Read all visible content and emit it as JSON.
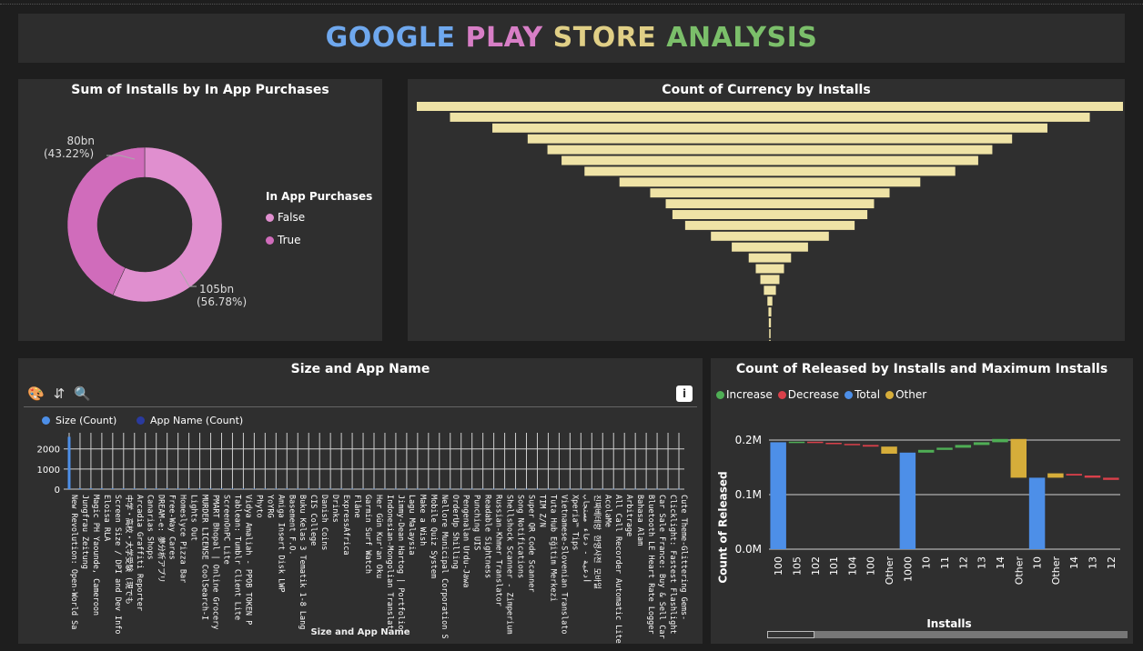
{
  "header": {
    "title_parts": [
      {
        "text": "GOOGLE",
        "color": "#6fa8ee"
      },
      {
        "text": "PLAY",
        "color": "#d77ec6"
      },
      {
        "text": "STORE",
        "color": "#e0cf86"
      },
      {
        "text": "ANALYSIS",
        "color": "#7bbf6a"
      }
    ]
  },
  "donut": {
    "title": "Sum of Installs by In App Purchases",
    "legend_title": "In App Purchases",
    "label_true_value": "80bn",
    "label_true_pct": "(43.22%)",
    "label_false_value": "105bn",
    "label_false_pct": "(56.78%)"
  },
  "funnel": {
    "title": "Count of Currency by Installs"
  },
  "size_chart": {
    "title": "Size and App Name",
    "legend_size": "Size (Count)",
    "legend_app": "App Name (Count)",
    "xlabel": "Size and App Name"
  },
  "waterfall": {
    "title": "Count of Released by Installs and Maximum Installs",
    "legend": {
      "increase": "Increase",
      "decrease": "Decrease",
      "total": "Total",
      "other": "Other"
    },
    "ylabel": "Count of Released",
    "xlabel": "Installs"
  },
  "chart_data": [
    {
      "type": "pie",
      "title": "Sum of Installs by In App Purchases",
      "legend_title": "In App Purchases",
      "categories": [
        "False",
        "True"
      ],
      "values": [
        105,
        80
      ],
      "unit": "bn",
      "percent": [
        56.78,
        43.22
      ],
      "colors": [
        "#e08fcf",
        "#d06cbb"
      ],
      "legend_placement": "right"
    },
    {
      "type": "bar",
      "orientation": "funnel",
      "title": "Count of Currency by Installs",
      "values": [
        1.0,
        0.906,
        0.786,
        0.686,
        0.63,
        0.59,
        0.525,
        0.426,
        0.339,
        0.295,
        0.276,
        0.24,
        0.167,
        0.108,
        0.06,
        0.04,
        0.027,
        0.017,
        0.007,
        0.004,
        0.003,
        0.002,
        0.001,
        0.001
      ],
      "color": "#efe3a6"
    },
    {
      "type": "bar",
      "title": "Size and App Name",
      "xlabel": "Size and App Name",
      "yticks": [
        0,
        1000,
        2000
      ],
      "ylim": [
        0,
        2800
      ],
      "series": [
        {
          "name": "Size (Count)",
          "color": "#4d8fe8"
        },
        {
          "name": "App Name (Count)",
          "color": "#2a3a9e"
        }
      ],
      "categories": [
        "New Revolution: Open-World Sa",
        "Jungfrau Zeitung",
        "Magic PH Yaounde, Cameroon",
        "Eloisa RLA",
        "Screen Size / DPI and Dev Info",
        "中学・高校・大学受験 (現でも",
        "Arcadia Graffiti Reporter",
        "Canarias Shops",
        "DREAM-e: 夢分析アプリ",
        "Free-Way Cares",
        "Homeslyce Pizza Bar",
        "Lights Out",
        "MURDER LICENSE CoolSearch-I",
        "PMART Bhopal | Online Grocery",
        "ScreenOnPC Lite",
        "Tablean: Tumblr Client Lite",
        "Vidya Amaliah - PPOB TOKEN P",
        "Phyto",
        "YoYRG",
        "Amiga Insert Disk LWP",
        "Basement F.O.",
        "Buku Kelas 3 Tematik 1-8 Lang",
        "CIS College",
        "Danish Coins",
        "Drinks",
        "ExpressAfrica",
        "Flâne",
        "Garmin Surf Watch",
        "Her Gün Kur'an Oku",
        "Indonesian-Mongolian Translat",
        "Jimmy-Dean Hartog | Portfolio",
        "Lagu Malaysia",
        "Make a Wish",
        "Mobile Quiz System",
        "Nellore Municipal Corporation S",
        "OrderUp Shilling",
        "Pengenalan Urdu-Jawa",
        "Punching UIS",
        "Readable Sightness",
        "Russian-Khmer Translator",
        "Shellshock Scanner - Zimperium",
        "Song Notifications",
        "Super QR Code Scanner",
        "TIM Z/N",
        "Tuta Hub Eğitim Merkezi",
        "Vietnamese-Slovenian Translato",
        "Xperia™ Tips",
        "أدعية - دعاء مستجاب",
        "진짜베테랑 한영사전 모바일",
        "AcolaMe",
        "All Call Recorder Automatic Lite",
        "Arbitrage",
        "Bahasa Alam",
        "Bluetooth LE Heart Rate Logger",
        "Car Sale France: Buy & Sell Car",
        "Clicklight: Fastest Flashlight",
        "Cute Theme-Glittering Gems-"
      ],
      "values": [
        2600,
        40,
        38,
        35,
        32,
        30,
        29,
        28,
        27,
        26,
        26,
        25,
        25,
        24,
        24,
        23,
        23,
        22,
        22,
        21,
        21,
        20,
        20,
        20,
        19,
        19,
        19,
        18,
        18,
        18,
        17,
        17,
        17,
        17,
        16,
        16,
        16,
        16,
        15,
        15,
        15,
        15,
        14,
        14,
        14,
        14,
        14,
        13,
        13,
        13,
        13,
        13,
        12,
        12,
        12,
        12,
        12
      ]
    },
    {
      "type": "bar",
      "orientation": "waterfall",
      "title": "Count of Released by Installs and Maximum Installs",
      "ylabel": "Count of Released",
      "xlabel": "Installs",
      "yticks": [
        "0.0M",
        "0.1M",
        "0.2M"
      ],
      "ytick_values": [
        0,
        0.1,
        0.2
      ],
      "ylim": [
        0,
        0.23
      ],
      "categories": [
        "100",
        "105",
        "102",
        "101",
        "104",
        "100",
        "Other",
        "1000",
        "10",
        "11",
        "12",
        "13",
        "14",
        "Other",
        "10",
        "Other",
        "14",
        "13",
        "12"
      ],
      "kinds": [
        "total",
        "increase",
        "decrease",
        "decrease",
        "decrease",
        "decrease",
        "other",
        "total",
        "increase",
        "increase",
        "increase",
        "increase",
        "increase",
        "other",
        "total",
        "other",
        "decrease",
        "decrease",
        "decrease"
      ],
      "starts": [
        0,
        0.196,
        0.197,
        0.195,
        0.193,
        0.191,
        0.188,
        0,
        0.177,
        0.182,
        0.186,
        0.191,
        0.196,
        0.202,
        0,
        0.131,
        0.138,
        0.135,
        0.131
      ],
      "ends": [
        0.196,
        0.197,
        0.195,
        0.193,
        0.191,
        0.188,
        0.175,
        0.177,
        0.182,
        0.186,
        0.191,
        0.196,
        0.202,
        0.131,
        0.131,
        0.139,
        0.135,
        0.131,
        0.127
      ],
      "colors": {
        "increase": "#4fae55",
        "decrease": "#d9404a",
        "total": "#4d8fe8",
        "other": "#d6ad3a"
      },
      "legend_placement": "top-left"
    }
  ]
}
